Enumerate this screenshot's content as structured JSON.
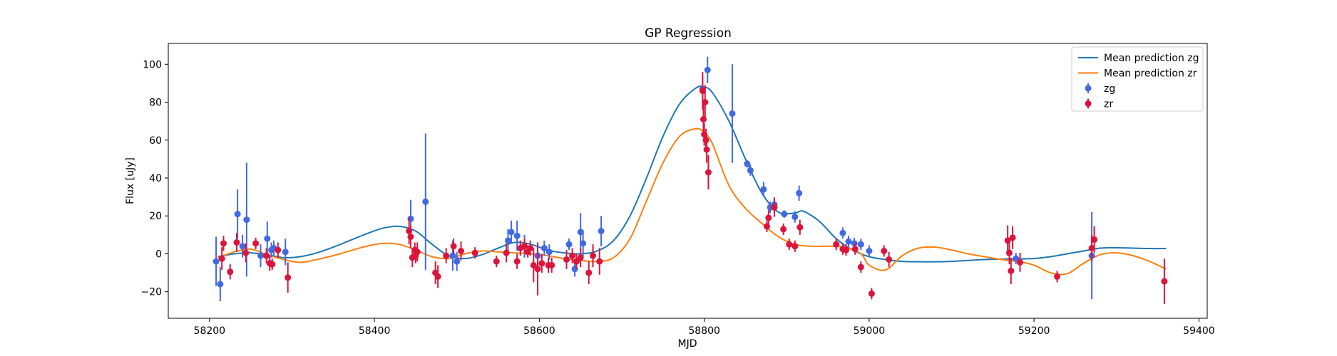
{
  "chart_data": {
    "type": "scatter",
    "title": "GP Regression",
    "xlabel": "MJD",
    "ylabel": "Flux [uJy]",
    "xlim": [
      58150,
      59410
    ],
    "ylim": [
      -34,
      111
    ],
    "x_ticks": [
      58200,
      58400,
      58600,
      58800,
      59000,
      59200,
      59400
    ],
    "y_ticks": [
      -20,
      0,
      20,
      40,
      60,
      80,
      100
    ],
    "legend_position": "upper right",
    "grid": false,
    "series": [
      {
        "name": "Mean prediction zg",
        "kind": "line",
        "color": "#1f77b4",
        "x": [
          58210,
          58230,
          58250,
          58270,
          58290,
          58310,
          58330,
          58350,
          58370,
          58390,
          58410,
          58430,
          58450,
          58470,
          58490,
          58510,
          58530,
          58550,
          58570,
          58590,
          58610,
          58630,
          58650,
          58670,
          58690,
          58710,
          58730,
          58750,
          58770,
          58790,
          58800,
          58810,
          58830,
          58850,
          58870,
          58890,
          58910,
          58920,
          58940,
          58960,
          58980,
          59000,
          59020,
          59040,
          59060,
          59080,
          59100,
          59120,
          59140,
          59160,
          59180,
          59200,
          59220,
          59240,
          59260,
          59280,
          59300,
          59320,
          59340,
          59360
        ],
        "y": [
          -1.5,
          0.0,
          0.5,
          -0.5,
          -2.0,
          -1.5,
          0.5,
          3.5,
          7.0,
          10.5,
          13.5,
          14.5,
          12.0,
          5.0,
          -1.0,
          -2.5,
          -0.5,
          3.0,
          6.0,
          5.0,
          2.0,
          0.5,
          0.0,
          1.5,
          7.0,
          20.0,
          40.0,
          62.0,
          79.0,
          87.5,
          88.0,
          85.0,
          70.0,
          50.0,
          32.0,
          22.0,
          21.5,
          22.5,
          17.0,
          8.0,
          2.0,
          -1.5,
          -3.0,
          -4.0,
          -4.2,
          -4.2,
          -4.0,
          -3.5,
          -3.0,
          -2.8,
          -2.7,
          -2.5,
          -1.5,
          0.0,
          1.5,
          3.0,
          3.2,
          3.0,
          2.8,
          2.8
        ]
      },
      {
        "name": "Mean prediction zr",
        "kind": "line",
        "color": "#ff7f0e",
        "x": [
          58210,
          58230,
          58250,
          58270,
          58290,
          58310,
          58330,
          58350,
          58370,
          58390,
          58410,
          58430,
          58450,
          58470,
          58490,
          58510,
          58530,
          58550,
          58570,
          58590,
          58610,
          58630,
          58650,
          58670,
          58690,
          58710,
          58730,
          58750,
          58770,
          58790,
          58800,
          58810,
          58830,
          58850,
          58870,
          58890,
          58910,
          58930,
          58950,
          58970,
          58990,
          59000,
          59020,
          59040,
          59060,
          59080,
          59100,
          59120,
          59140,
          59160,
          59180,
          59200,
          59220,
          59240,
          59260,
          59280,
          59300,
          59320,
          59340,
          59360
        ],
        "y": [
          -2.0,
          1.0,
          2.5,
          -0.5,
          -3.0,
          -4.5,
          -3.0,
          -1.0,
          1.5,
          4.0,
          5.5,
          5.0,
          2.0,
          -1.5,
          -2.5,
          0.0,
          1.5,
          1.0,
          0.5,
          0.0,
          -1.0,
          -2.5,
          -3.5,
          -4.0,
          -2.0,
          8.0,
          28.0,
          48.0,
          62.0,
          66.0,
          64.0,
          58.0,
          36.0,
          24.0,
          16.0,
          9.0,
          5.0,
          4.0,
          4.0,
          3.5,
          0.0,
          -6.0,
          -8.5,
          -1.0,
          3.0,
          3.5,
          2.0,
          0.0,
          -1.5,
          -3.0,
          -4.0,
          -6.0,
          -10.0,
          -10.5,
          -5.0,
          -0.5,
          0.5,
          -1.0,
          -4.0,
          -8.0
        ]
      },
      {
        "name": "zg",
        "kind": "errorbar",
        "color": "#4169e1",
        "x": [
          58208,
          58213,
          58234,
          58240,
          58245,
          58262,
          58270,
          58275,
          58278,
          58292,
          58444,
          58462,
          58495,
          58500,
          58562,
          58566,
          58573,
          58582,
          58598,
          58606,
          58612,
          58636,
          58643,
          58650,
          58653,
          58675,
          58798,
          58804,
          58834,
          58852,
          58856,
          58872,
          58880,
          58885,
          58897,
          58910,
          58915,
          58968,
          58975,
          58982,
          58990,
          59000,
          59178,
          59270
        ],
        "y": [
          -4,
          -16,
          21,
          4,
          18,
          -1,
          8,
          2,
          3,
          1,
          18.5,
          27.5,
          -1,
          -4,
          7,
          11.5,
          9.5,
          4,
          -1,
          3,
          1,
          5,
          -8,
          11.5,
          5.5,
          12,
          87,
          97,
          74,
          47.5,
          44,
          34,
          24.5,
          26,
          21,
          19.5,
          32,
          11,
          6.5,
          5.5,
          5,
          1.5,
          -2.5,
          -1
        ],
        "yerr": [
          13,
          9,
          13,
          6,
          30,
          6,
          9,
          4,
          4,
          7,
          10,
          36,
          8,
          5,
          6,
          6,
          8,
          6,
          6,
          4,
          4,
          3,
          4,
          10,
          7,
          8,
          7,
          7,
          26,
          2,
          3,
          4,
          3,
          4,
          2,
          3,
          4,
          3,
          3,
          3,
          3,
          3,
          3,
          23
        ]
      },
      {
        "name": "zr",
        "kind": "errorbar",
        "color": "#dc143c",
        "x": [
          58215,
          58217,
          58225,
          58233,
          58244,
          58256,
          58269,
          58273,
          58276,
          58283,
          58295,
          58442,
          58444,
          58446,
          58449,
          58450,
          58452,
          58474,
          58477,
          58487,
          58496,
          58505,
          58522,
          58548,
          58560,
          58573,
          58577,
          58582,
          58586,
          58589,
          58593,
          58598,
          58603,
          58611,
          58615,
          58633,
          58640,
          58645,
          58650,
          58660,
          58665,
          58673,
          58798,
          58799,
          58800,
          58801,
          58802,
          58803,
          58805,
          58876,
          58878,
          58885,
          58896,
          58903,
          58910,
          58916,
          58960,
          58968,
          58972,
          58983,
          58990,
          59003,
          59018,
          59024,
          59168,
          59170,
          59172,
          59174,
          59183,
          59228,
          59270,
          59273,
          59358
        ],
        "y": [
          -2.5,
          5.5,
          -9.5,
          6,
          0.5,
          5.5,
          -1,
          -5,
          -5.5,
          2,
          -12.5,
          12,
          9,
          -2,
          2,
          -1,
          1,
          -10,
          -12,
          -1,
          4,
          1.5,
          0.5,
          -4,
          0.5,
          -4,
          3,
          4,
          1,
          3,
          -6,
          -8,
          -5,
          -6,
          -6,
          -3,
          -1,
          -4,
          -2,
          -10,
          -1,
          -4,
          86,
          71,
          63,
          80,
          60,
          55,
          43,
          14.5,
          19,
          24.5,
          13,
          5,
          4,
          14,
          5,
          2.5,
          2,
          2.5,
          -7,
          -21,
          1.5,
          -3,
          7,
          0.5,
          -9,
          8.5,
          -4.5,
          -12,
          3,
          7.5,
          -14.5
        ],
        "yerr": [
          6,
          4,
          4,
          5,
          5,
          3,
          4,
          4,
          3,
          4,
          8,
          7,
          6,
          5,
          4,
          4,
          5,
          6,
          6,
          4,
          4,
          5,
          3,
          3,
          5,
          4,
          4,
          4,
          3,
          4,
          9,
          14,
          5,
          4,
          4,
          5,
          4,
          4,
          5,
          6,
          6,
          7,
          10,
          8,
          6,
          9,
          6,
          7,
          9,
          3,
          4,
          5,
          3,
          3,
          3,
          4,
          3,
          3,
          3,
          3,
          3,
          3,
          3,
          4,
          8,
          6,
          7,
          6,
          5,
          3,
          7,
          7,
          12
        ]
      }
    ]
  }
}
